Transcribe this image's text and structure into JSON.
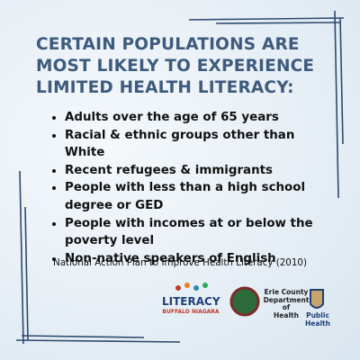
{
  "title_lines": [
    "CERTAIN POPULATIONS ARE",
    "MOST LIKELY TO EXPERIENCE",
    "LIMITED HEALTH LITERACY:"
  ],
  "bullets": [
    "Adults over the age of 65 years",
    "Racial & ethnic groups other than White",
    "Recent refugees & immigrants",
    "People with less than a high school degree or GED",
    "People with incomes at or below the poverty level",
    "Non-native speakers of English"
  ],
  "source": "National Action Plan to Improve Health Literacy (2010)",
  "logos": {
    "literacy": {
      "name": "LITERACY",
      "region": "BUFFALO NIAGARA"
    },
    "erie": {
      "line1": "Erie County",
      "line2": "Department of",
      "line3": "Health"
    },
    "public_health": "Public Health"
  }
}
